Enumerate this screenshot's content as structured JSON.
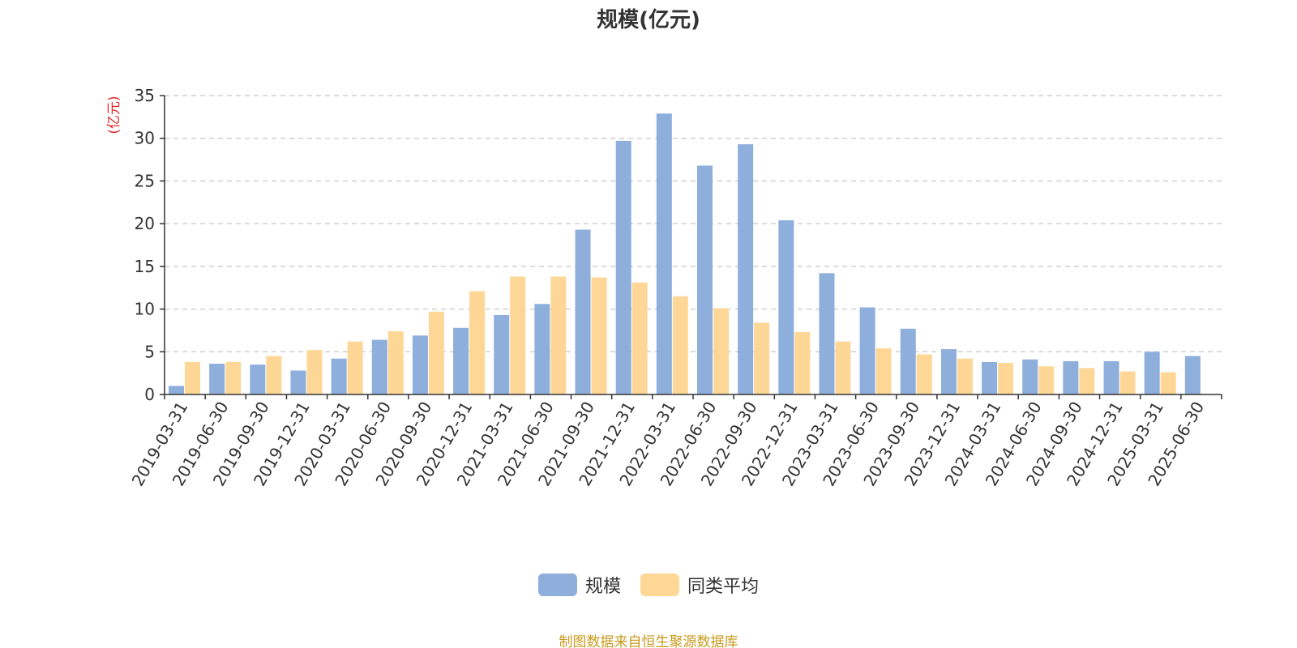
{
  "title": "规模(亿元)",
  "source_text": "制图数据来自恒生聚源数据库",
  "colors": {
    "series_1": "#8eaedc",
    "series_2": "#fed797",
    "unit_label": "#e0262a",
    "source_text": "#c89a1e",
    "grid": "#cfcfcf",
    "axis": "#333333"
  },
  "legend": {
    "items": [
      {
        "label": "规模"
      },
      {
        "label": "同类平均"
      }
    ]
  },
  "chart_data": {
    "type": "bar",
    "title": "规模(亿元)",
    "ylabel": "(亿元)",
    "xlabel": "",
    "ylim": [
      0,
      35
    ],
    "yticks": [
      0,
      5,
      10,
      15,
      20,
      25,
      30,
      35
    ],
    "grid": true,
    "legend_position": "bottom-center",
    "categories": [
      "2019-03-31",
      "2019-06-30",
      "2019-09-30",
      "2019-12-31",
      "2020-03-31",
      "2020-06-30",
      "2020-09-30",
      "2020-12-31",
      "2021-03-31",
      "2021-06-30",
      "2021-09-30",
      "2021-12-31",
      "2022-03-31",
      "2022-06-30",
      "2022-09-30",
      "2022-12-31",
      "2023-03-31",
      "2023-06-30",
      "2023-09-30",
      "2023-12-31",
      "2024-03-31",
      "2024-06-30",
      "2024-09-30",
      "2024-12-31",
      "2025-03-31",
      "2025-06-30"
    ],
    "series": [
      {
        "name": "规模",
        "values": [
          1.0,
          3.6,
          3.5,
          2.8,
          4.2,
          6.4,
          6.9,
          7.8,
          9.3,
          10.6,
          19.3,
          29.7,
          32.9,
          26.8,
          29.3,
          20.4,
          14.2,
          10.2,
          7.7,
          5.3,
          3.8,
          4.1,
          3.9,
          3.9,
          5.0,
          4.5
        ]
      },
      {
        "name": "同类平均",
        "values": [
          3.8,
          3.8,
          4.5,
          5.2,
          6.2,
          7.4,
          9.7,
          12.1,
          13.8,
          13.8,
          13.7,
          13.1,
          11.5,
          10.1,
          8.4,
          7.3,
          6.2,
          5.4,
          4.7,
          4.2,
          3.7,
          3.3,
          3.1,
          2.7,
          2.6,
          null
        ]
      }
    ]
  }
}
